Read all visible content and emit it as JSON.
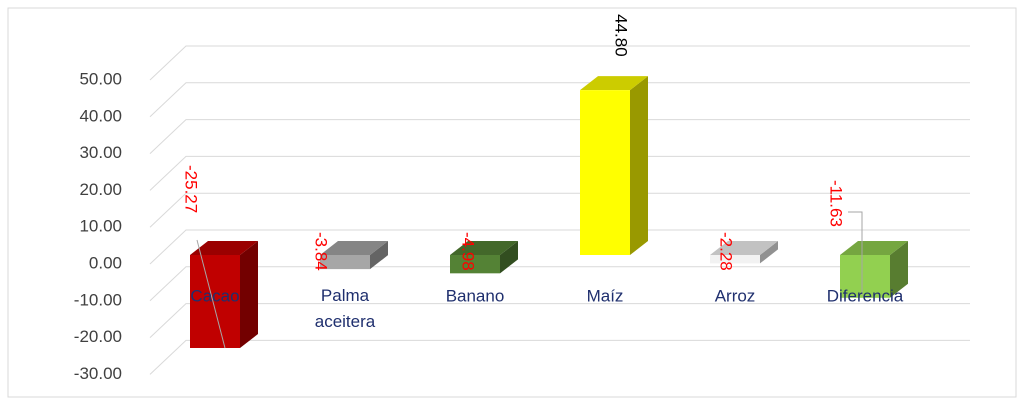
{
  "chart_data": {
    "type": "bar3d",
    "categories": [
      "Cacao",
      "Palma aceitera",
      "Banano",
      "Maíz",
      "Arroz",
      "Diferencia"
    ],
    "values": [
      -25.27,
      -3.84,
      -4.98,
      44.8,
      -2.28,
      -11.63
    ],
    "value_labels": [
      "-25.27",
      "-3.84",
      "-4.98",
      "44.80",
      "-2.28",
      "-11.63"
    ],
    "colors": [
      "#c00000",
      "#a6a6a6",
      "#548235",
      "#ffff00",
      "#f2f2f2",
      "#92d050"
    ],
    "ylim": [
      -30,
      60
    ],
    "yticks": [
      {
        "value": -30,
        "label": "-30.00"
      },
      {
        "value": -20,
        "label": "-20.00"
      },
      {
        "value": -10,
        "label": "-10.00"
      },
      {
        "value": 0,
        "label": "0.00"
      },
      {
        "value": 10,
        "label": "10.00"
      },
      {
        "value": 20,
        "label": "20.00"
      },
      {
        "value": 30,
        "label": "30.00"
      },
      {
        "value": 40,
        "label": "40.00"
      },
      {
        "value": 50,
        "label": "50.00"
      }
    ],
    "grid": true
  }
}
